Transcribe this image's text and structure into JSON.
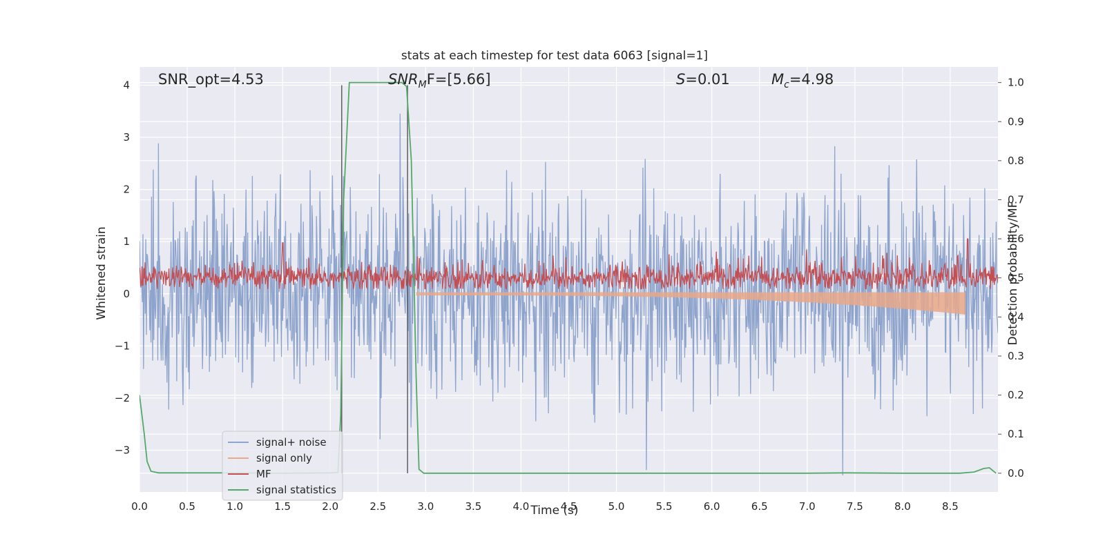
{
  "chart_data": {
    "type": "line",
    "title": "stats at each timestep for test data 6063 [signal=1]",
    "xlabel": "Time (s)",
    "ylabel_left": "Whitened strain",
    "ylabel_right": "Detection probability/MF",
    "xlim": [
      0.0,
      9.0
    ],
    "ylim_left": [
      -3.8,
      4.35
    ],
    "ylim_right": [
      -0.048,
      1.04
    ],
    "x_ticks": [
      "0.0",
      "0.5",
      "1.0",
      "1.5",
      "2.0",
      "2.5",
      "3.0",
      "3.5",
      "4.0",
      "4.5",
      "5.0",
      "5.5",
      "6.0",
      "6.5",
      "7.0",
      "7.5",
      "8.0",
      "8.5"
    ],
    "y_left_ticks": [
      "4",
      "3",
      "2",
      "1",
      "0",
      "−1",
      "−2",
      "−3"
    ],
    "y_right_ticks": [
      "1.0",
      "0.9",
      "0.8",
      "0.7",
      "0.6",
      "0.5",
      "0.4",
      "0.3",
      "0.2",
      "0.1",
      "0.0"
    ],
    "grid": true,
    "annotations": {
      "snr_opt": "SNR_opt=4.53",
      "snr_mf_base": "SNR",
      "snr_mf_sub": "M",
      "snr_mf_rest": "F=[5.66]",
      "s_base": "S",
      "s_rest": "=0.01",
      "mc_base": "M",
      "mc_sub": "c",
      "mc_rest": "=4.98"
    },
    "vertical_lines_x": [
      2.12,
      2.81
    ],
    "legend_position": "lower-left",
    "series": [
      {
        "name": "signal+ noise",
        "color": "#8ea4cc",
        "axis": "left",
        "description_values": "whitened noise approx within [-3.6, 4.0], std ~0.9"
      },
      {
        "name": "signal only",
        "color": "#e8a889",
        "axis": "left",
        "description_values": "chirp envelope from 2.9 s growing to ~0.4 at 8.65 s"
      },
      {
        "name": "MF",
        "color": "#c44e52",
        "axis": "right",
        "description_values": "fluctuates around 0.5 (0.47-0.55), spikes 0.59 at 1.5 s and 0.6 at 8.68 s"
      },
      {
        "name": "signal statistics",
        "color": "#55a868",
        "axis": "right",
        "x": [
          0.0,
          0.05,
          0.08,
          0.12,
          0.2,
          0.5,
          1.0,
          1.5,
          2.0,
          2.08,
          2.11,
          2.14,
          2.2,
          2.5,
          2.75,
          2.8,
          2.85,
          2.9,
          2.93,
          2.98,
          3.5,
          4.0,
          5.0,
          6.0,
          7.0,
          7.4,
          8.0,
          8.6,
          8.75,
          8.85,
          8.91,
          8.98
        ],
        "y": [
          0.2,
          0.1,
          0.03,
          0.005,
          0.001,
          0.001,
          0.001,
          0.0,
          0.001,
          0.002,
          0.15,
          0.7,
          1.0,
          1.0,
          1.0,
          0.99,
          0.8,
          0.25,
          0.01,
          0.0,
          0.0,
          0.0,
          0.0,
          0.0,
          0.0,
          0.001,
          0.0,
          0.0,
          0.003,
          0.012,
          0.014,
          0.0
        ]
      }
    ]
  }
}
